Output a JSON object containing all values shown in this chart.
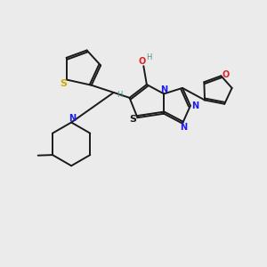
{
  "background_color": "#ebebeb",
  "fig_size": [
    3.0,
    3.0
  ],
  "dpi": 100,
  "bond_color": "#1a1a1a",
  "bond_lw": 1.4,
  "S_thio_color": "#ccaa00",
  "N_color": "#1a1aee",
  "O_color": "#dd2222",
  "S_thz_color": "#1a1a1a",
  "H_color": "#4a9090",
  "xlim": [
    0,
    10
  ],
  "ylim": [
    0,
    10
  ]
}
